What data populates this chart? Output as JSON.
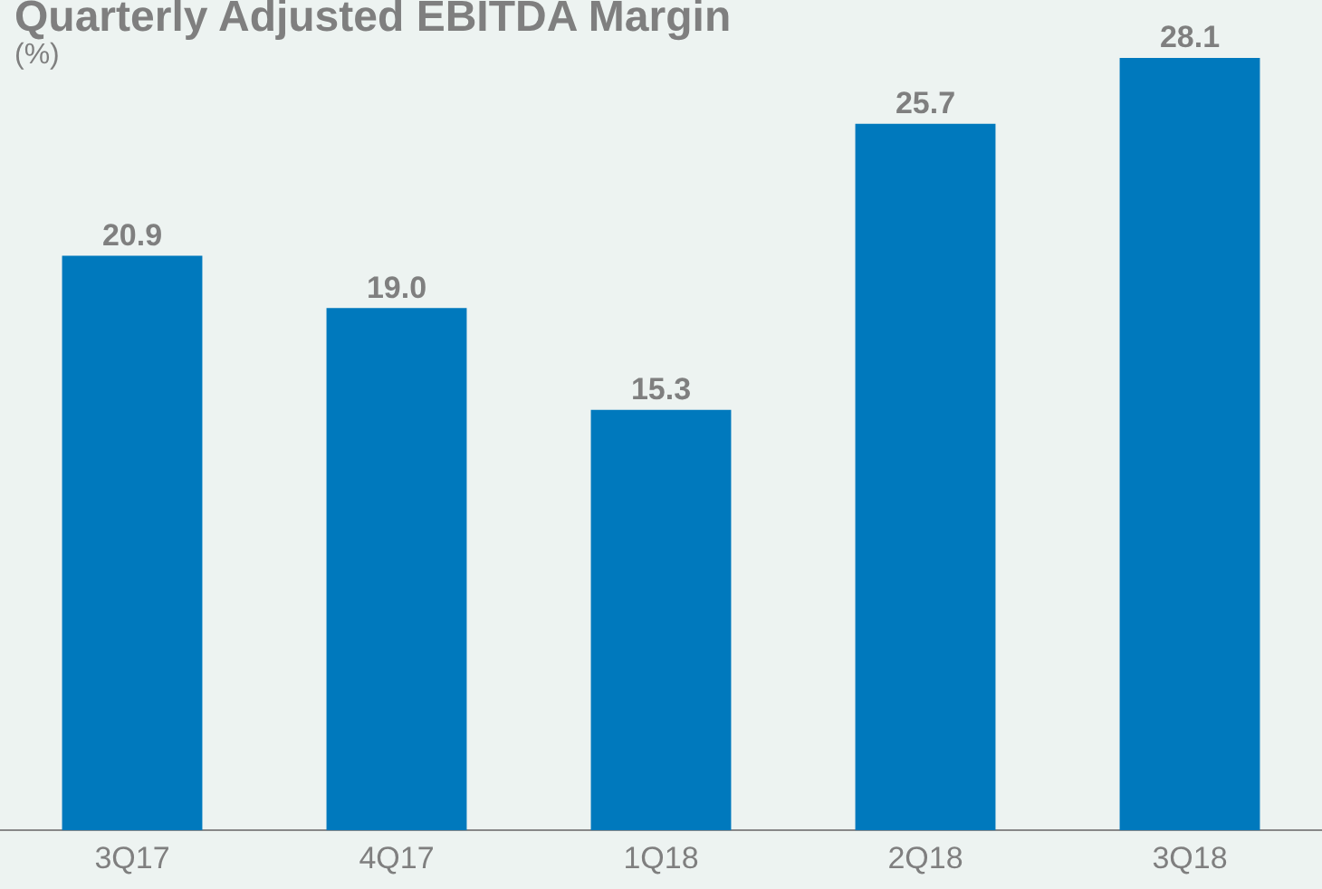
{
  "chart_data": {
    "type": "bar",
    "title": "Quarterly Adjusted EBITDA Margin",
    "subtitle": "(%)",
    "categories": [
      "3Q17",
      "4Q17",
      "1Q18",
      "2Q18",
      "3Q18"
    ],
    "values": [
      20.9,
      19.0,
      15.3,
      25.7,
      28.1
    ],
    "value_labels": [
      "20.9",
      "19.0",
      "15.3",
      "25.7",
      "28.1"
    ],
    "color": "#0079bd",
    "grid": false,
    "legend": false
  }
}
